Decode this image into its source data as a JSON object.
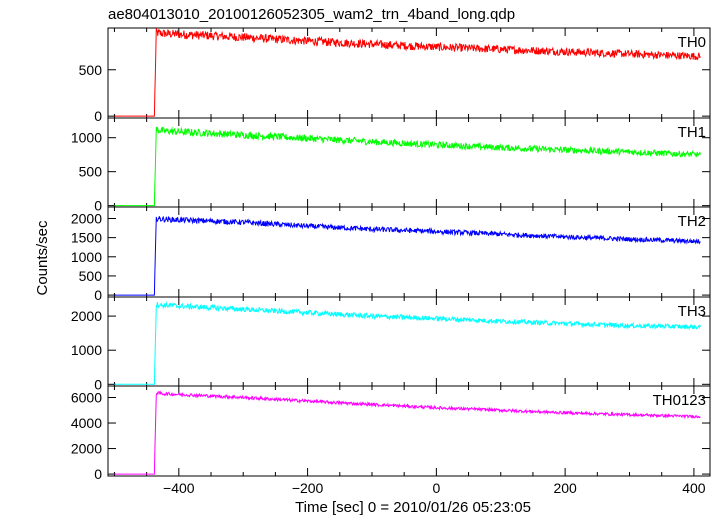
{
  "chart_data": {
    "type": "line",
    "title": "ae804013010_20100126052305_wam2_trn_4band_long.qdp",
    "xlabel": "Time [sec] 0 = 2010/01/26 05:23:05",
    "ylabel": "Counts/sec",
    "xlim": [
      -510,
      425
    ],
    "xticks": [
      -400,
      -200,
      0,
      200,
      400
    ],
    "grid": false,
    "legend": "none",
    "panels": [
      {
        "name": "TH0",
        "color": "#ff0000",
        "ylim": [
          -20,
          950
        ],
        "yticks": [
          0,
          500
        ],
        "series": {
          "x": [
            -500,
            -438,
            -435,
            -425,
            -300,
            -200,
            -100,
            0,
            100,
            200,
            300,
            410
          ],
          "y": [
            0,
            0,
            900,
            890,
            850,
            810,
            775,
            745,
            720,
            695,
            670,
            645
          ]
        }
      },
      {
        "name": "TH1",
        "color": "#00ff00",
        "ylim": [
          -20,
          1290
        ],
        "yticks": [
          0,
          500,
          1000
        ],
        "series": {
          "x": [
            -500,
            -438,
            -435,
            -425,
            -300,
            -200,
            -100,
            0,
            100,
            200,
            300,
            410
          ],
          "y": [
            0,
            0,
            1120,
            1100,
            1040,
            990,
            940,
            895,
            855,
            820,
            790,
            750
          ]
        }
      },
      {
        "name": "TH2",
        "color": "#0000ff",
        "ylim": [
          -50,
          2300
        ],
        "yticks": [
          0,
          500,
          1000,
          1500,
          2000
        ],
        "series": {
          "x": [
            -500,
            -438,
            -435,
            -425,
            -300,
            -200,
            -100,
            0,
            100,
            200,
            300,
            410
          ],
          "y": [
            0,
            0,
            2000,
            1980,
            1900,
            1800,
            1720,
            1660,
            1590,
            1520,
            1460,
            1400
          ]
        }
      },
      {
        "name": "TH3",
        "color": "#00ffff",
        "ylim": [
          -50,
          2560
        ],
        "yticks": [
          0,
          1000,
          2000
        ],
        "series": {
          "x": [
            -500,
            -438,
            -435,
            -425,
            -300,
            -200,
            -100,
            0,
            100,
            200,
            300,
            410
          ],
          "y": [
            0,
            0,
            2340,
            2320,
            2200,
            2100,
            2000,
            1930,
            1850,
            1780,
            1720,
            1680
          ]
        }
      },
      {
        "name": "TH0123",
        "color": "#ff00ff",
        "ylim": [
          -150,
          6900
        ],
        "yticks": [
          0,
          2000,
          4000,
          6000
        ],
        "series": {
          "x": [
            -500,
            -438,
            -435,
            -425,
            -300,
            -200,
            -100,
            0,
            100,
            200,
            300,
            410
          ],
          "y": [
            0,
            0,
            6350,
            6300,
            6000,
            5720,
            5450,
            5200,
            5000,
            4800,
            4650,
            4500
          ]
        }
      }
    ]
  }
}
